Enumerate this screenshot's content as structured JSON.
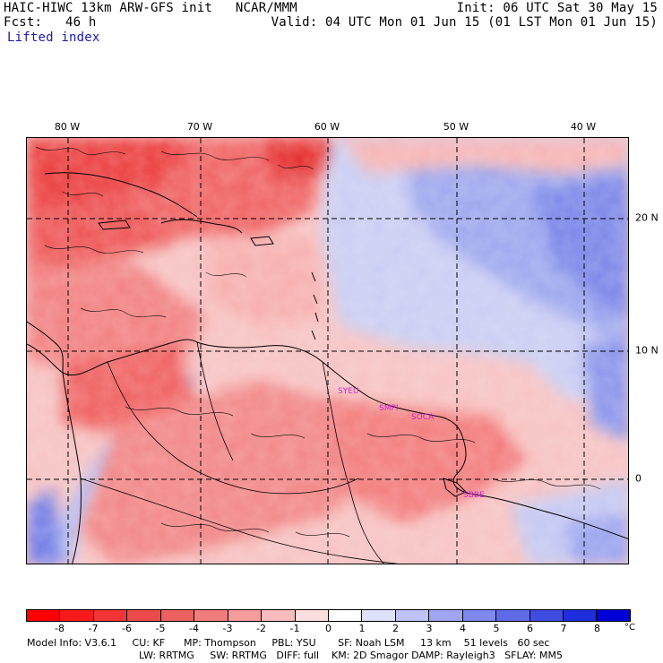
{
  "header": {
    "line1_left": "HAIC-HIWC 13km ARW-GFS init   NCAR/MMM",
    "line1_right": "Init: 06 UTC Sat 30 May 15",
    "line2_left": "Fcst:   46 h",
    "line2_right": "Valid: 04 UTC Mon 01 Jun 15 (01 LST Mon 01 Jun 15)",
    "field_name": "Lifted index"
  },
  "map": {
    "longitude_labels": [
      "80 W",
      "70 W",
      "60 W",
      "50 W",
      "40 W"
    ],
    "latitude_labels": [
      "20 N",
      "10 N",
      "0"
    ],
    "stations": [
      "SYEU",
      "SMPI",
      "SOCA",
      "SBBE"
    ],
    "colors": {
      "strong_unstable": "#e8232a",
      "unstable": "#f05a5a",
      "mild_unstable": "#f59a9a",
      "weak_unstable": "#f9c6c6",
      "neutral": "#f5f0f0",
      "weak_stable": "#c9cdf3",
      "stable": "#8c96ea",
      "strong_stable": "#5060e0"
    }
  },
  "colorbar": {
    "tick_labels": [
      "-8",
      "-7",
      "-6",
      "-5",
      "-4",
      "-3",
      "-2",
      "-1",
      "0",
      "1",
      "2",
      "3",
      "4",
      "5",
      "6",
      "7",
      "8"
    ],
    "unit": "°C",
    "colors": [
      "#ff0000",
      "#f81a1a",
      "#f23434",
      "#ee4a4a",
      "#ec6060",
      "#f07c7c",
      "#f59c9c",
      "#f9bcbc",
      "#fcdede",
      "#ffffff",
      "#dfe0fb",
      "#bfc2f5",
      "#9fa5f0",
      "#7f88ec",
      "#5f6ae6",
      "#3f4ce2",
      "#1f2edd",
      "#0000d8"
    ]
  },
  "footer": {
    "line1": "Model Info: V3.6.1     CU: KF      MP: Thompson     PBL: YSU       SF: Noah LSM     13 km    51 levels   60 sec",
    "line2": "LW: RRTMG     SW: RRTMG   DIFF: full    KM: 2D Smagor DAMP: Rayleigh3   SFLAY: MM5"
  }
}
